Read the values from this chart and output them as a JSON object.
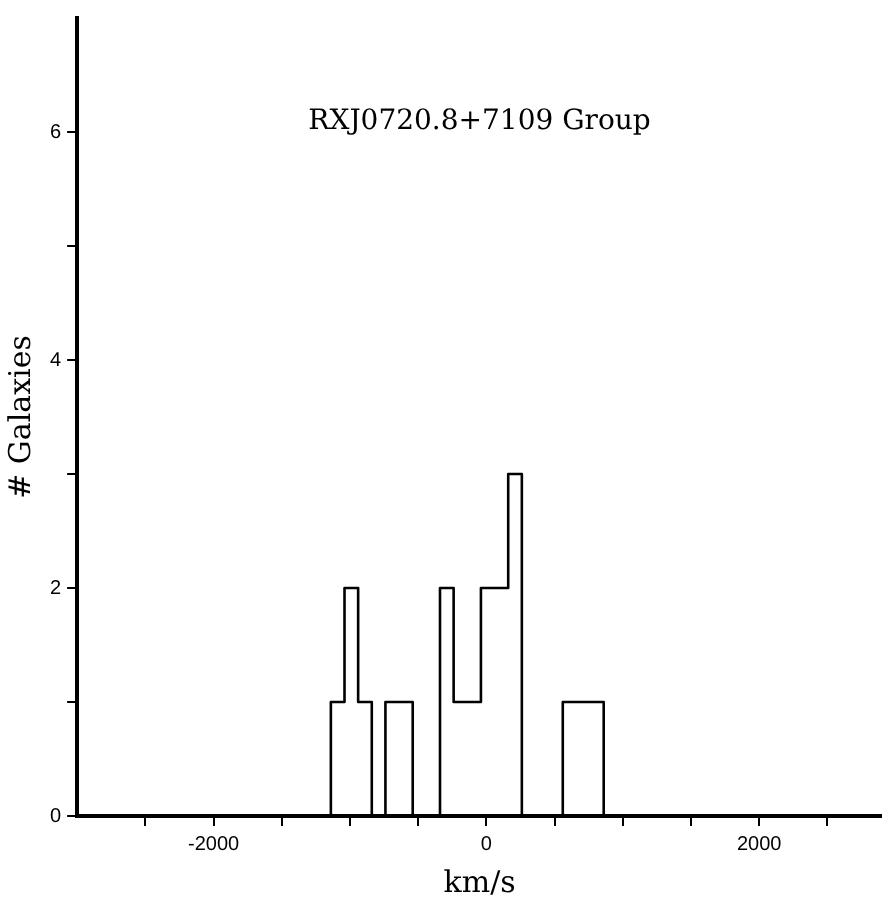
{
  "chart_data": {
    "type": "histogram",
    "title": "RXJ0720.8+7109 Group",
    "xlabel": "km/s",
    "ylabel": "# Galaxies",
    "bins": [
      -1140,
      -1040,
      -940,
      -840,
      -740,
      -640,
      -540,
      -440,
      -340,
      -240,
      -140,
      -40,
      60,
      160,
      260,
      360,
      460,
      560,
      660,
      760,
      860
    ],
    "values": [
      1,
      2,
      1,
      0,
      1,
      1,
      0,
      0,
      2,
      1,
      1,
      2,
      2,
      3,
      0,
      0,
      0,
      1,
      1,
      1
    ],
    "color": "#000000",
    "xlim": [
      -3000,
      2900
    ],
    "xticks": [
      {
        "value": -2500,
        "label": null
      },
      -2000,
      {
        "value": -1500,
        "label": null
      },
      {
        "value": -1000,
        "label": null
      },
      {
        "value": -500,
        "label": null
      },
      0,
      {
        "value": 500,
        "label": null
      },
      {
        "value": 1000,
        "label": null
      },
      {
        "value": 1500,
        "label": null
      },
      2000,
      {
        "value": 2500,
        "label": null
      }
    ],
    "ylim": [
      0,
      7
    ],
    "yticks": [
      0,
      {
        "value": 1,
        "label": null
      },
      2,
      {
        "value": 3,
        "label": null
      },
      4,
      {
        "value": 5,
        "label": null
      },
      6
    ],
    "grid": false,
    "legend": false
  }
}
